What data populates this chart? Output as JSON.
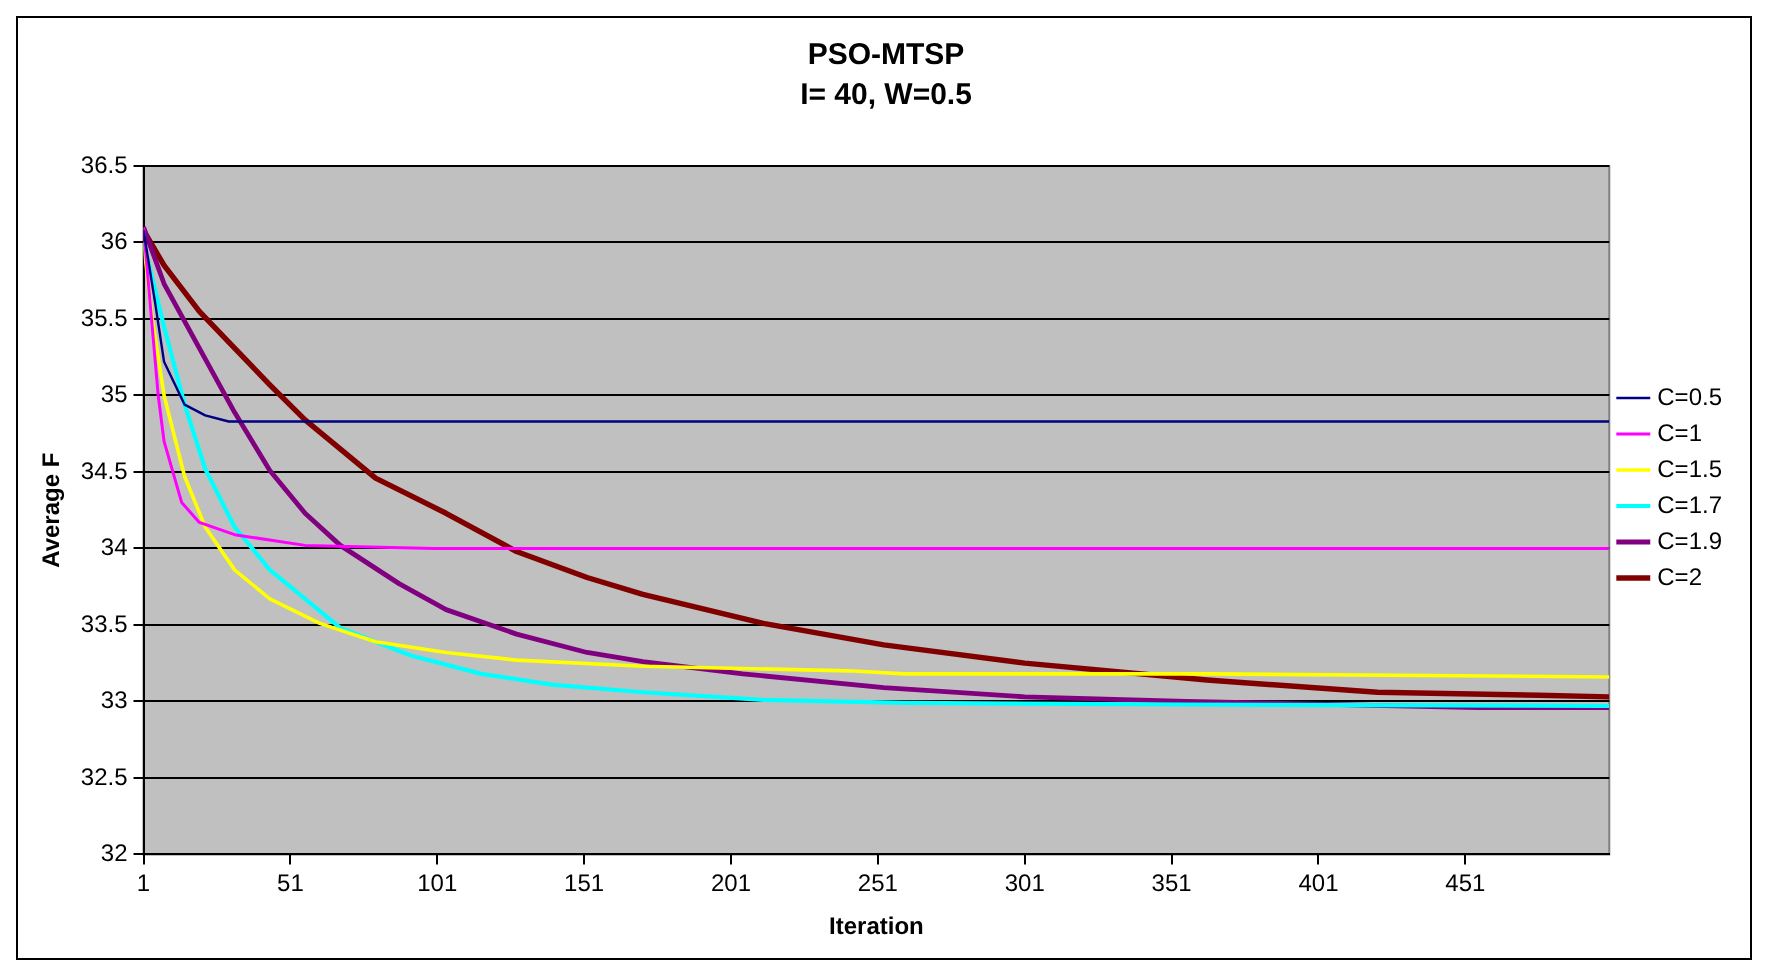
{
  "chart_data": {
    "type": "line",
    "title": "PSO-MTSP",
    "subtitle": "I= 40, W=0.5",
    "xlabel": "Iteration",
    "ylabel": "Average F",
    "xlim": [
      1,
      500
    ],
    "xticks": [
      1,
      51,
      101,
      151,
      201,
      251,
      301,
      351,
      401,
      451
    ],
    "ylim": [
      32,
      36.5
    ],
    "yticks": [
      32,
      32.5,
      33,
      33.5,
      34,
      34.5,
      35,
      35.5,
      36,
      36.5
    ],
    "grid": "y",
    "legend": "right",
    "marker": "none",
    "line_style": "solid",
    "series": [
      {
        "name": "C=0.5",
        "color": "#000080",
        "x": [
          1,
          5,
          8,
          15,
          22,
          30,
          500
        ],
        "values": [
          36.08,
          35.6,
          35.22,
          34.94,
          34.87,
          34.83,
          34.83
        ]
      },
      {
        "name": "C=1",
        "color": "#ff00ff",
        "x": [
          1,
          6,
          8,
          14,
          20,
          32,
          56,
          100,
          500
        ],
        "values": [
          36.1,
          35.0,
          34.7,
          34.3,
          34.17,
          34.09,
          34.02,
          34.0,
          34.0
        ]
      },
      {
        "name": "C=1.5",
        "color": "#ffff00",
        "x": [
          1,
          4,
          8,
          15,
          22,
          32,
          44,
          61,
          80,
          104,
          128,
          171,
          241,
          260,
          364,
          500
        ],
        "values": [
          36.0,
          35.5,
          35.0,
          34.47,
          34.14,
          33.86,
          33.67,
          33.51,
          33.39,
          33.32,
          33.27,
          33.23,
          33.2,
          33.18,
          33.18,
          33.16
        ]
      },
      {
        "name": "C=1.7",
        "color": "#00ffff",
        "x": [
          1,
          8,
          15,
          22,
          32,
          44,
          56,
          68,
          92,
          116,
          140,
          171,
          212,
          260,
          356,
          500
        ],
        "values": [
          36.0,
          35.45,
          34.94,
          34.52,
          34.14,
          33.86,
          33.67,
          33.48,
          33.3,
          33.18,
          33.11,
          33.06,
          33.01,
          32.99,
          32.98,
          32.97
        ]
      },
      {
        "name": "C=1.9",
        "color": "#800080",
        "x": [
          1,
          8,
          20,
          32,
          44,
          56,
          68,
          88,
          104,
          128,
          152,
          171,
          205,
          253,
          301,
          356,
          455,
          500
        ],
        "values": [
          36.1,
          35.73,
          35.31,
          34.89,
          34.51,
          34.23,
          34.02,
          33.77,
          33.6,
          33.44,
          33.32,
          33.26,
          33.18,
          33.09,
          33.03,
          33.0,
          32.96,
          32.96
        ]
      },
      {
        "name": "C=2",
        "color": "#800000",
        "x": [
          1,
          8,
          20,
          32,
          44,
          56,
          80,
          104,
          128,
          152,
          171,
          212,
          253,
          301,
          363,
          421,
          476,
          500
        ],
        "values": [
          36.08,
          35.85,
          35.55,
          35.31,
          35.07,
          34.84,
          34.46,
          34.23,
          33.98,
          33.81,
          33.7,
          33.51,
          33.37,
          33.25,
          33.14,
          33.06,
          33.04,
          33.03
        ]
      }
    ]
  }
}
